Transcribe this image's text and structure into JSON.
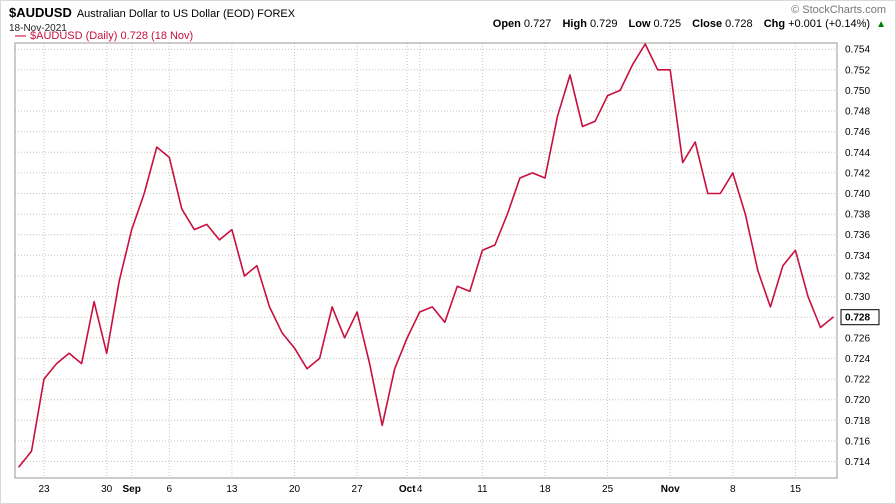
{
  "header": {
    "symbol": "$AUDUSD",
    "description": "Australian Dollar to US Dollar (EOD) FOREX",
    "date": "18-Nov-2021",
    "copyright": "© StockCharts.com",
    "quote": {
      "open_label": "Open",
      "open": "0.727",
      "high_label": "High",
      "high": "0.729",
      "low_label": "Low",
      "low": "0.725",
      "close_label": "Close",
      "close": "0.728",
      "chg_label": "Chg",
      "chg": "+0.001 (+0.14%)",
      "arrow": "▲"
    },
    "legend_marker": "—",
    "legend": "$AUDUSD (Daily) 0.728 (18 Nov)"
  },
  "chart_data": {
    "type": "line",
    "title": "$AUDUSD (Daily) — Australian Dollar to US Dollar (EOD) FOREX",
    "xlabel": "",
    "ylabel": "",
    "grid": true,
    "legend_position": "top-left",
    "ylim": [
      0.7124,
      0.7546
    ],
    "colors": {
      "line": "#C8103E",
      "grid": "#C3C3C3",
      "border": "#999999",
      "axis_text": "#000000",
      "positive": "#008000"
    },
    "y_ticks": [
      0.714,
      0.716,
      0.718,
      0.72,
      0.722,
      0.724,
      0.726,
      0.728,
      0.73,
      0.732,
      0.734,
      0.736,
      0.738,
      0.74,
      0.742,
      0.744,
      0.746,
      0.748,
      0.75,
      0.752,
      0.754
    ],
    "x_ticks": [
      {
        "index": 2,
        "label": "23"
      },
      {
        "index": 7,
        "label": "30"
      },
      {
        "index": 9,
        "label": "Sep",
        "month": true
      },
      {
        "index": 12,
        "label": "6"
      },
      {
        "index": 17,
        "label": "13"
      },
      {
        "index": 22,
        "label": "20"
      },
      {
        "index": 27,
        "label": "27"
      },
      {
        "index": 31,
        "label": "Oct",
        "month": true
      },
      {
        "index": 32,
        "label": "4"
      },
      {
        "index": 37,
        "label": "11"
      },
      {
        "index": 42,
        "label": "18"
      },
      {
        "index": 47,
        "label": "25"
      },
      {
        "index": 52,
        "label": "Nov",
        "month": true
      },
      {
        "index": 57,
        "label": "8"
      },
      {
        "index": 62,
        "label": "15"
      }
    ],
    "x_dates": [
      "Aug 19",
      "Aug 20",
      "Aug 23",
      "Aug 24",
      "Aug 25",
      "Aug 26",
      "Aug 27",
      "Aug 30",
      "Aug 31",
      "Sep 1",
      "Sep 2",
      "Sep 3",
      "Sep 6",
      "Sep 7",
      "Sep 8",
      "Sep 9",
      "Sep 10",
      "Sep 13",
      "Sep 14",
      "Sep 15",
      "Sep 16",
      "Sep 17",
      "Sep 20",
      "Sep 21",
      "Sep 22",
      "Sep 23",
      "Sep 24",
      "Sep 27",
      "Sep 28",
      "Sep 29",
      "Sep 30",
      "Oct 1",
      "Oct 4",
      "Oct 5",
      "Oct 6",
      "Oct 7",
      "Oct 8",
      "Oct 11",
      "Oct 12",
      "Oct 13",
      "Oct 14",
      "Oct 15",
      "Oct 18",
      "Oct 19",
      "Oct 20",
      "Oct 21",
      "Oct 22",
      "Oct 25",
      "Oct 26",
      "Oct 27",
      "Oct 28",
      "Oct 29",
      "Nov 1",
      "Nov 2",
      "Nov 3",
      "Nov 4",
      "Nov 5",
      "Nov 8",
      "Nov 9",
      "Nov 10",
      "Nov 11",
      "Nov 12",
      "Nov 15",
      "Nov 16",
      "Nov 17",
      "Nov 18"
    ],
    "values": [
      0.7135,
      0.715,
      0.722,
      0.7235,
      0.7245,
      0.7235,
      0.7295,
      0.7245,
      0.7315,
      0.7365,
      0.74,
      0.7445,
      0.7435,
      0.7385,
      0.7365,
      0.737,
      0.7355,
      0.7365,
      0.732,
      0.733,
      0.729,
      0.7265,
      0.725,
      0.723,
      0.724,
      0.729,
      0.726,
      0.7285,
      0.7235,
      0.7175,
      0.723,
      0.726,
      0.7285,
      0.729,
      0.7275,
      0.731,
      0.7305,
      0.7345,
      0.735,
      0.738,
      0.7415,
      0.742,
      0.7415,
      0.7475,
      0.7515,
      0.7465,
      0.747,
      0.7495,
      0.75,
      0.7525,
      0.7545,
      0.752,
      0.752,
      0.743,
      0.745,
      0.74,
      0.74,
      0.742,
      0.738,
      0.7325,
      0.729,
      0.733,
      0.7345,
      0.73,
      0.727,
      0.728
    ],
    "last_price": 0.728,
    "last_price_label": "0.728"
  }
}
